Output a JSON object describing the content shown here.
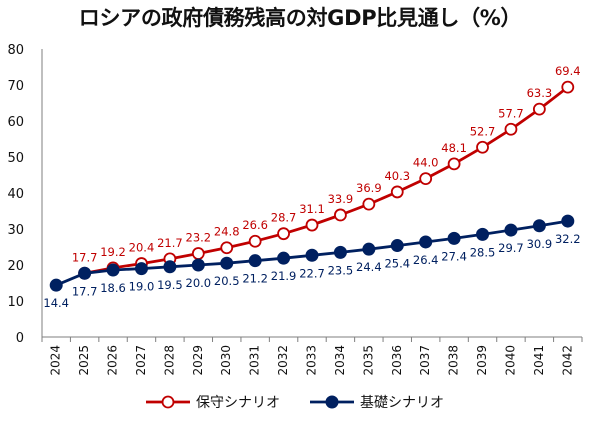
{
  "chart_data": {
    "type": "line",
    "title": "ロシアの政府債務残高の対GDP比見通し（%）",
    "xlabel": "",
    "ylabel": "",
    "ylim": [
      0,
      80
    ],
    "yticks": [
      0,
      10,
      20,
      30,
      40,
      50,
      60,
      70,
      80
    ],
    "grid": false,
    "legend_position": "bottom",
    "x": [
      "2024",
      "2025",
      "2026",
      "2027",
      "2028",
      "2029",
      "2030",
      "2031",
      "2032",
      "2033",
      "2034",
      "2035",
      "2036",
      "2037",
      "2038",
      "2039",
      "2040",
      "2041",
      "2042"
    ],
    "series": [
      {
        "name": "保守シナリオ",
        "color": "#c00000",
        "marker": "open-circle",
        "values": [
          null,
          17.7,
          19.2,
          20.4,
          21.7,
          23.2,
          24.8,
          26.6,
          28.7,
          31.1,
          33.9,
          36.9,
          40.3,
          44.0,
          48.1,
          52.7,
          57.7,
          63.3,
          69.4
        ],
        "labels": [
          "",
          "17.7",
          "19.2",
          "20.4",
          "21.7",
          "23.2",
          "24.8",
          "26.6",
          "28.7",
          "31.1",
          "33.9",
          "36.9",
          "40.3",
          "44.0",
          "48.1",
          "52.7",
          "57.7",
          "63.3",
          "69.4"
        ]
      },
      {
        "name": "基礎シナリオ",
        "color": "#002060",
        "marker": "filled-circle",
        "values": [
          14.4,
          17.7,
          18.6,
          19.0,
          19.5,
          20.0,
          20.5,
          21.2,
          21.9,
          22.7,
          23.5,
          24.4,
          25.4,
          26.4,
          27.4,
          28.5,
          29.7,
          30.9,
          32.2
        ],
        "labels": [
          "14.4",
          "17.7",
          "18.6",
          "19.0",
          "19.5",
          "20.0",
          "20.5",
          "21.2",
          "21.9",
          "22.7",
          "23.5",
          "24.4",
          "25.4",
          "26.4",
          "27.4",
          "28.5",
          "29.7",
          "30.9",
          "32.2"
        ]
      }
    ]
  }
}
